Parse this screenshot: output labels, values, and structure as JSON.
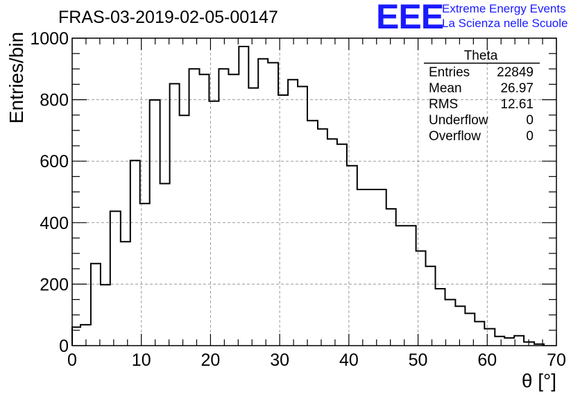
{
  "title": "FRAS-03-2019-02-05-00147",
  "logo": {
    "mark": "EEE",
    "line1": "Extreme Energy Events",
    "line2": "La Scienza nelle Scuole",
    "color": "#1a1aff"
  },
  "stats": {
    "name": "Theta",
    "rows": [
      {
        "label": "Entries",
        "value": "22849"
      },
      {
        "label": "Mean",
        "value": "26.97"
      },
      {
        "label": "RMS",
        "value": "12.61"
      },
      {
        "label": "Underflow",
        "value": "0"
      },
      {
        "label": "Overflow",
        "value": "0"
      }
    ]
  },
  "chart_data": {
    "type": "bar",
    "style": "step-histogram",
    "title": "FRAS-03-2019-02-05-00147",
    "xlabel": "θ [°]",
    "ylabel": "Entries/bin",
    "xlim": [
      0,
      70
    ],
    "ylim": [
      0,
      1000
    ],
    "xticks": [
      0,
      10,
      20,
      30,
      40,
      50,
      60,
      70
    ],
    "yticks": [
      0,
      200,
      400,
      600,
      800,
      1000
    ],
    "grid": true,
    "bin_edges": [
      0,
      1.2,
      2.7,
      4.1,
      5.5,
      7.0,
      8.4,
      9.8,
      11.2,
      12.7,
      14.1,
      15.5,
      16.9,
      18.4,
      19.8,
      21.2,
      22.6,
      24.1,
      25.5,
      26.9,
      28.3,
      29.8,
      31.2,
      32.6,
      34.0,
      35.5,
      36.9,
      38.3,
      39.7,
      41.2,
      45.4,
      46.8,
      49.7,
      51.1,
      52.5,
      53.9,
      55.4,
      56.8,
      58.2,
      59.6,
      61.1,
      62.5,
      63.9,
      65.3,
      66.8,
      68.2
    ],
    "values": [
      60,
      68,
      267,
      198,
      437,
      338,
      602,
      462,
      799,
      527,
      852,
      749,
      900,
      882,
      795,
      900,
      882,
      973,
      838,
      933,
      920,
      815,
      865,
      843,
      732,
      705,
      672,
      655,
      585,
      508,
      445,
      390,
      308,
      258,
      185,
      150,
      128,
      105,
      78,
      55,
      30,
      25,
      32,
      12,
      5
    ],
    "line_color": "#000000"
  }
}
